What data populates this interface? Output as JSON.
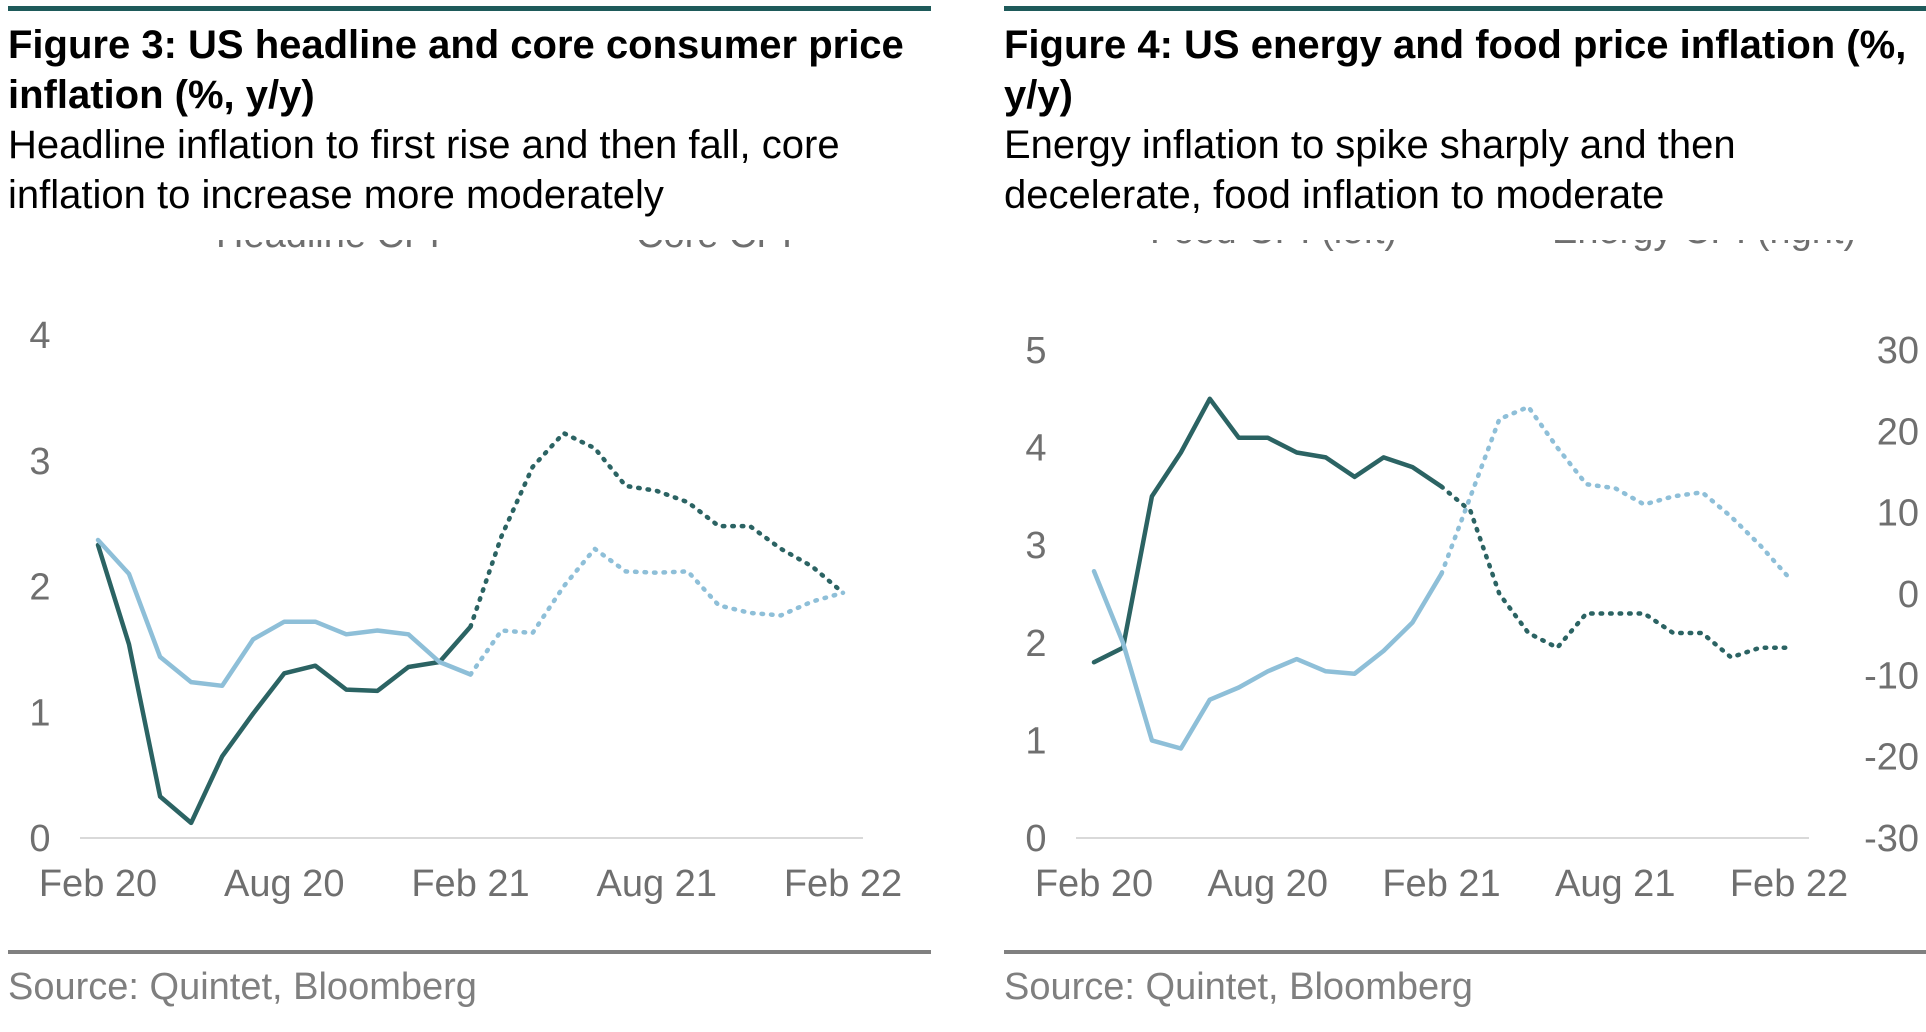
{
  "figures": [
    {
      "title": "Figure 3: US headline and core consumer price inflation (%, y/y)",
      "subtitle": "Headline inflation to first rise and then fall, core inflation to increase more moderately",
      "source": "Source: Quintet, Bloomberg"
    },
    {
      "title": "Figure 4: US energy and food price inflation (%, y/y)",
      "subtitle": "Energy inflation to spike sharply and then decelerate, food inflation to moderate",
      "source": "Source: Quintet, Bloomberg"
    }
  ],
  "chart_data": [
    {
      "type": "line",
      "x": [
        "Feb 20",
        "Mar 20",
        "Apr 20",
        "May 20",
        "Jun 20",
        "Jul 20",
        "Aug 20",
        "Sep 20",
        "Oct 20",
        "Nov 20",
        "Dec 20",
        "Jan 21",
        "Feb 21",
        "Mar 21",
        "Apr 21",
        "May 21",
        "Jun 21",
        "Jul 21",
        "Aug 21",
        "Sep 21",
        "Oct 21",
        "Nov 21",
        "Dec 21",
        "Jan 22",
        "Feb 22"
      ],
      "x_tick_labels": [
        "Feb 20",
        "Aug 20",
        "Feb 21",
        "Aug 21",
        "Feb 22"
      ],
      "y_ticks": [
        0,
        1,
        2,
        3,
        4
      ],
      "ylim": [
        0,
        4
      ],
      "actual_until": "Feb 21",
      "forecast_style": "dotted",
      "series": [
        {
          "name": "Headline CPI",
          "color": "#2b6363",
          "values": [
            2.33,
            1.54,
            0.33,
            0.12,
            0.65,
            0.99,
            1.31,
            1.37,
            1.18,
            1.17,
            1.36,
            1.4,
            1.68,
            2.4,
            2.95,
            3.22,
            3.1,
            2.8,
            2.76,
            2.67,
            2.48,
            2.48,
            2.3,
            2.16,
            1.95
          ]
        },
        {
          "name": "Core CPI",
          "color": "#8ebfd8",
          "values": [
            2.37,
            2.1,
            1.44,
            1.24,
            1.21,
            1.58,
            1.72,
            1.72,
            1.62,
            1.65,
            1.62,
            1.4,
            1.3,
            1.65,
            1.63,
            2.0,
            2.3,
            2.12,
            2.11,
            2.12,
            1.85,
            1.79,
            1.77,
            1.88,
            1.95
          ]
        }
      ],
      "legend_position": "top"
    },
    {
      "type": "line",
      "x": [
        "Feb 20",
        "Mar 20",
        "Apr 20",
        "May 20",
        "Jun 20",
        "Jul 20",
        "Aug 20",
        "Sep 20",
        "Oct 20",
        "Nov 20",
        "Dec 20",
        "Jan 21",
        "Feb 21",
        "Mar 21",
        "Apr 21",
        "May 21",
        "Jun 21",
        "Jul 21",
        "Aug 21",
        "Sep 21",
        "Oct 21",
        "Nov 21",
        "Dec 21",
        "Jan 22",
        "Feb 22"
      ],
      "x_tick_labels": [
        "Feb 20",
        "Aug 20",
        "Feb 21",
        "Aug 21",
        "Feb 22"
      ],
      "y_left_ticks": [
        0,
        1,
        2,
        3,
        4,
        5
      ],
      "y_left_lim": [
        0,
        5
      ],
      "y_right_ticks": [
        -30,
        -20,
        -10,
        0,
        10,
        20,
        30
      ],
      "y_right_lim": [
        -30,
        30
      ],
      "actual_until": "Feb 21",
      "forecast_style": "dotted",
      "series": [
        {
          "name": "Food CPI (left)",
          "axis": "left",
          "color": "#2b6363",
          "values": [
            1.8,
            1.95,
            3.5,
            3.95,
            4.5,
            4.1,
            4.1,
            3.95,
            3.9,
            3.7,
            3.9,
            3.8,
            3.6,
            3.35,
            2.5,
            2.1,
            1.95,
            2.3,
            2.3,
            2.3,
            2.1,
            2.1,
            1.85,
            1.95,
            1.95
          ]
        },
        {
          "name": "Energy CPI (right)",
          "axis": "right",
          "color": "#8ebfd8",
          "values": [
            2.8,
            -6.0,
            -18.0,
            -19.0,
            -13.0,
            -11.5,
            -9.5,
            -8.0,
            -9.5,
            -9.8,
            -7.0,
            -3.5,
            2.5,
            12.0,
            21.5,
            23.0,
            18.0,
            13.5,
            13.0,
            11.0,
            12.0,
            12.5,
            9.5,
            6.0,
            2.0
          ]
        }
      ],
      "legend_position": "top"
    }
  ]
}
